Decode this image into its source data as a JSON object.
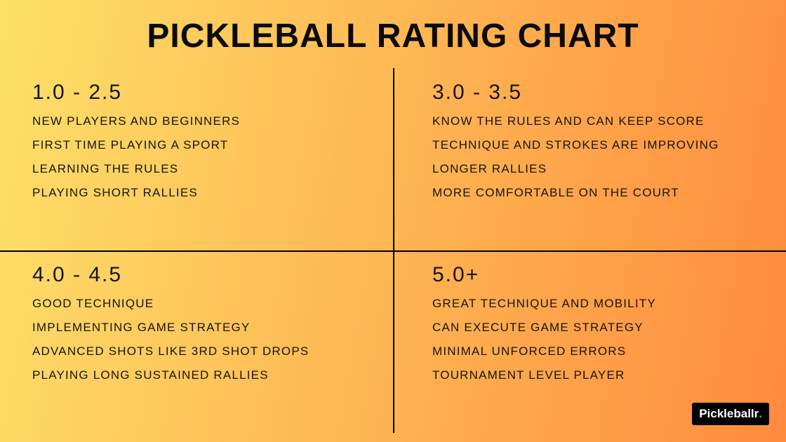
{
  "title": "PICKLEBALL RATING CHART",
  "title_fontsize": 48,
  "title_color": "#0b0b0b",
  "background_gradient": {
    "from": "#fde069",
    "to": "#ff8b3d",
    "angle_deg": 100
  },
  "divider_color": "#000000",
  "text_color": "#151515",
  "range_fontsize": 30,
  "item_fontsize": 17,
  "quadrants": [
    {
      "range": "1.0 - 2.5",
      "items": [
        "NEW PLAYERS AND BEGINNERS",
        "FIRST TIME PLAYING A SPORT",
        "LEARNING THE RULES",
        "PLAYING SHORT RALLIES"
      ]
    },
    {
      "range": "3.0 - 3.5",
      "items": [
        "KNOW THE RULES AND CAN KEEP SCORE",
        "TECHNIQUE AND STROKES ARE IMPROVING",
        "LONGER RALLIES",
        "MORE COMFORTABLE ON THE COURT"
      ]
    },
    {
      "range": "4.0 - 4.5",
      "items": [
        "GOOD TECHNIQUE",
        "IMPLEMENTING GAME STRATEGY",
        "ADVANCED SHOTS LIKE 3RD SHOT DROPS",
        "PLAYING LONG SUSTAINED RALLIES"
      ]
    },
    {
      "range": "5.0+",
      "items": [
        "GREAT TECHNIQUE AND MOBILITY",
        "CAN EXECUTE GAME STRATEGY",
        "MINIMAL UNFORCED ERRORS",
        "TOURNAMENT LEVEL PLAYER"
      ]
    }
  ],
  "brand": {
    "name": "Pickleballr",
    "dot": ".",
    "bg": "#000000",
    "fg": "#ffffff",
    "dot_color": "#2fd36a",
    "fontsize": 17
  }
}
